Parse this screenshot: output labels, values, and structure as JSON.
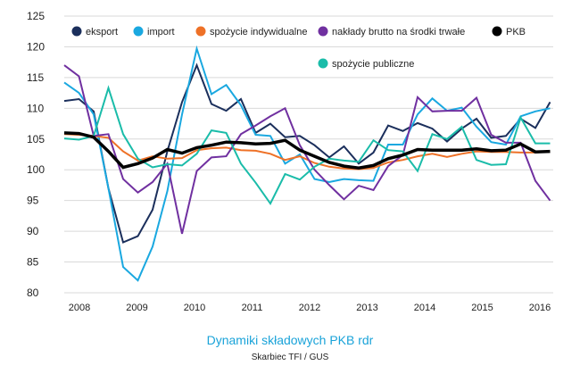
{
  "chart_data": {
    "type": "line",
    "title": "Dynamiki składowych PKB rdr",
    "subtitle": "Skarbiec TFI / GUS",
    "xlabel": "",
    "ylabel": "",
    "ylim": [
      80,
      125
    ],
    "yticks": [
      "125",
      "120",
      "115",
      "110",
      "105",
      "100",
      "95",
      "90",
      "85",
      "80"
    ],
    "ytick_values": [
      125,
      120,
      115,
      110,
      105,
      100,
      95,
      90,
      85,
      80
    ],
    "xtick_labels": [
      "2008",
      "2009",
      "2010",
      "2011",
      "2012",
      "2013",
      "2014",
      "2015",
      "2016"
    ],
    "x_frequency": "quarterly",
    "x_start": "2008 Q1",
    "x_end": "2016 Q2",
    "grid": true,
    "legend_position": "top",
    "series": [
      {
        "name": "eksport",
        "color": "#1b2f5c",
        "values": [
          111.2,
          111.5,
          109.5,
          97,
          88.2,
          89.2,
          93.5,
          103,
          111,
          117,
          110.7,
          109.6,
          111.5,
          106,
          107.5,
          105.3,
          105.5,
          104,
          102,
          103.8,
          101,
          102.8,
          107.2,
          106.3,
          107.6,
          106.7,
          104.6,
          106.7,
          108.3,
          105.2,
          105.5,
          108.3,
          106.8,
          111
        ]
      },
      {
        "name": "import",
        "color": "#1aa8e0",
        "values": [
          114.2,
          112.5,
          109,
          97,
          84.2,
          82,
          87.5,
          96.5,
          109,
          119.7,
          112.3,
          113.8,
          110.5,
          105.7,
          105.5,
          101,
          102.5,
          98.5,
          98,
          98.5,
          98.3,
          98.2,
          104.1,
          104.1,
          109,
          111.6,
          109.6,
          110.1,
          107,
          104.5,
          104.1,
          108.7,
          109.5,
          110
        ]
      },
      {
        "name": "spożycie indywidualne",
        "color": "#ee7127",
        "values": [
          105.8,
          105.7,
          105.5,
          105.2,
          103,
          101.5,
          102.2,
          101.8,
          101.9,
          103.2,
          103.5,
          103.6,
          103.2,
          103.1,
          102.6,
          101.6,
          102.2,
          101.1,
          100.5,
          100.2,
          100.1,
          100.3,
          101.2,
          101.6,
          102.2,
          102.6,
          102.1,
          102.6,
          103,
          102.9,
          102.9,
          102.8,
          102.8,
          103
        ]
      },
      {
        "name": "nakłady brutto na środki trwałe",
        "color": "#7030a0",
        "values": [
          117,
          115.2,
          105.5,
          105.8,
          98.5,
          96.3,
          98,
          101,
          89.6,
          99.8,
          102,
          102.2,
          105.8,
          107.2,
          108.7,
          110,
          104,
          100,
          97.5,
          95.2,
          97.4,
          96.7,
          100.6,
          102.4,
          111.8,
          109.5,
          109.6,
          109.6,
          111.7,
          105.7,
          104.4,
          104.4,
          98.2,
          95
        ]
      },
      {
        "name": "PKB",
        "color": "#000000",
        "values": [
          106,
          105.9,
          105.3,
          103,
          100.4,
          101,
          101.9,
          103.3,
          102.7,
          103.6,
          104,
          104.5,
          104.4,
          104.2,
          104.3,
          104.8,
          103.2,
          102.2,
          101.2,
          100.6,
          100.3,
          100.7,
          101.8,
          102.4,
          103.3,
          103.2,
          103.2,
          103.2,
          103.4,
          103.1,
          103.2,
          104.2,
          102.9,
          103
        ]
      },
      {
        "name": "spożycie publiczne",
        "color": "#1abca9",
        "values": [
          105.1,
          104.9,
          105.5,
          113.3,
          105.8,
          101.8,
          100.4,
          100.9,
          100.7,
          102.6,
          106.4,
          106,
          101,
          97.9,
          94.5,
          99.3,
          98.4,
          100.5,
          101.8,
          101.5,
          101.3,
          104.8,
          103.2,
          103,
          99.8,
          105.8,
          105,
          107,
          101.6,
          100.8,
          100.9,
          108.5,
          104.3,
          104.3
        ]
      }
    ]
  }
}
